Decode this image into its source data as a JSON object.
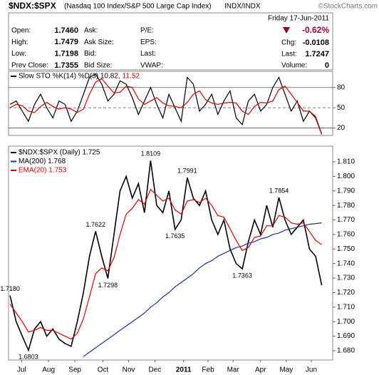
{
  "quote": {
    "title": "$NDX:$SPX",
    "subtitle": "(Nasdaq 100 Index/S&P 500 Large Cap Index)",
    "exchange": "INDX/INDX",
    "date": "Friday 17-Jun-2011",
    "change_pct": "-0.62%",
    "credit": "©StockCharts.com",
    "fields": [
      {
        "label": "Open:",
        "value": "1.7460"
      },
      {
        "label": "High:",
        "value": "1.7479"
      },
      {
        "label": "Low:",
        "value": "1.7198"
      },
      {
        "label": "Prev Close:",
        "value": "1.7355"
      }
    ],
    "fields_2": [
      "Ask:",
      "Ask Size:",
      "Bid:",
      "Bid Size:"
    ],
    "fields_3": [
      "P/E:",
      "EPS:",
      "Last:",
      "VWAP:"
    ],
    "right_fields": [
      {
        "label": "Chg:",
        "value": "-0.0108"
      },
      {
        "label": "Last:",
        "value": "1.7247"
      },
      {
        "label": "Volume:",
        "value": "0"
      }
    ]
  },
  "chart_data": [
    {
      "type": "line",
      "legend": [
        "Slow STO %K(14) %D(3) 10.82,",
        "11.52"
      ],
      "xlim": [
        -0.25,
        52.8
      ],
      "ylim": [
        9,
        104
      ],
      "yticks": [
        20,
        50,
        80
      ],
      "series": [
        {
          "name": "%K(14)",
          "color": "#000000",
          "values": [
            55,
            60,
            45,
            30,
            55,
            70,
            50,
            35,
            60,
            55,
            30,
            45,
            70,
            95,
            100,
            85,
            60,
            70,
            90,
            85,
            65,
            40,
            60,
            80,
            55,
            35,
            70,
            50,
            30,
            95,
            85,
            45,
            55,
            70,
            40,
            60,
            75,
            35,
            25,
            60,
            70,
            45,
            55,
            80,
            95,
            70,
            45,
            60,
            30,
            45,
            35,
            10.82
          ]
        },
        {
          "name": "%D(3)",
          "color": "#e00000",
          "values": [
            50,
            55,
            53,
            45,
            43,
            52,
            58,
            52,
            48,
            50,
            48,
            43,
            48,
            70,
            88,
            93,
            82,
            72,
            73,
            82,
            80,
            63,
            55,
            60,
            65,
            57,
            53,
            52,
            50,
            58,
            70,
            75,
            62,
            57,
            55,
            57,
            58,
            57,
            45,
            40,
            52,
            58,
            57,
            60,
            77,
            82,
            70,
            58,
            45,
            45,
            37,
            11.52
          ]
        }
      ]
    },
    {
      "type": "line",
      "xlim": [
        -0.25,
        52.8
      ],
      "ylim": [
        1.6736,
        1.8208
      ],
      "xticks": [
        {
          "value": 1.9,
          "label": "Jul"
        },
        {
          "value": 6.3,
          "label": "Aug"
        },
        {
          "value": 10.6,
          "label": "Sep"
        },
        {
          "value": 15.2,
          "label": "Oct"
        },
        {
          "value": 19.4,
          "label": "Nov"
        },
        {
          "value": 23.7,
          "label": "Dec"
        },
        {
          "value": 28.4,
          "label": "2011"
        },
        {
          "value": 32.4,
          "label": "Feb"
        },
        {
          "value": 36.5,
          "label": "Mar"
        },
        {
          "value": 41.0,
          "label": "Apr"
        },
        {
          "value": 45.2,
          "label": "May"
        },
        {
          "value": 49.3,
          "label": "Jun"
        }
      ],
      "yticks": [
        {
          "value": 1.68,
          "label": "1.680"
        },
        {
          "value": 1.69,
          "label": "1.690"
        },
        {
          "value": 1.7,
          "label": "1.700"
        },
        {
          "value": 1.71,
          "label": "1.710"
        },
        {
          "value": 1.72,
          "label": "1.720"
        },
        {
          "value": 1.73,
          "label": "1.730"
        },
        {
          "value": 1.74,
          "label": "1.740"
        },
        {
          "value": 1.75,
          "label": "1.750"
        },
        {
          "value": 1.76,
          "label": "1.760"
        },
        {
          "value": 1.77,
          "label": "1.770"
        },
        {
          "value": 1.78,
          "label": "1.780"
        },
        {
          "value": 1.79,
          "label": "1.790"
        },
        {
          "value": 1.8,
          "label": "1.800"
        },
        {
          "value": 1.81,
          "label": "1.810"
        }
      ],
      "series": [
        {
          "name": "$NDX:$SPX (Daily) 1.725",
          "color": "#000000",
          "values": [
            1.718,
            1.7,
            1.69,
            1.6803,
            1.695,
            1.7,
            1.69,
            1.695,
            1.688,
            1.685,
            1.683,
            1.7,
            1.72,
            1.745,
            1.7622,
            1.745,
            1.7298,
            1.76,
            1.79,
            1.8,
            1.785,
            1.795,
            1.775,
            1.8109,
            1.78,
            1.775,
            1.79,
            1.7635,
            1.77,
            1.7991,
            1.785,
            1.78,
            1.79,
            1.77,
            1.76,
            1.77,
            1.75,
            1.74,
            1.7363,
            1.755,
            1.77,
            1.76,
            1.78,
            1.765,
            1.7854,
            1.77,
            1.76,
            1.765,
            1.77,
            1.75,
            1.745,
            1.725
          ],
          "value_labels": [
            "1.7180",
            null,
            null,
            "1.6803",
            null,
            null,
            null,
            null,
            null,
            null,
            null,
            null,
            null,
            null,
            "1.7622",
            null,
            "1.7298",
            null,
            null,
            null,
            null,
            null,
            null,
            "1.8109",
            null,
            null,
            null,
            "1.7635",
            null,
            "1.7991",
            null,
            null,
            null,
            null,
            null,
            null,
            null,
            null,
            "1.7363",
            null,
            null,
            null,
            null,
            null,
            "1.7854",
            null,
            null,
            null,
            null,
            null,
            null,
            null
          ]
        },
        {
          "name": "MA(200) 1.768",
          "color": "#1f2fa8",
          "values": [
            null,
            null,
            null,
            null,
            null,
            null,
            null,
            null,
            null,
            null,
            null,
            null,
            1.676,
            1.679,
            1.682,
            1.685,
            1.688,
            1.691,
            1.694,
            1.697,
            1.7,
            1.703,
            1.706,
            1.71,
            1.713,
            1.717,
            1.72,
            1.724,
            1.727,
            1.73,
            1.733,
            1.737,
            1.74,
            1.742,
            1.745,
            1.747,
            1.749,
            1.751,
            1.752,
            1.754,
            1.755,
            1.757,
            1.758,
            1.76,
            1.761,
            1.763,
            1.764,
            1.765,
            1.766,
            1.767,
            1.7675,
            1.768
          ]
        },
        {
          "name": "EMA(20) 1.753",
          "color": "#e00000",
          "values": [
            1.712,
            1.706,
            1.7,
            1.693,
            1.694,
            1.696,
            1.694,
            1.694,
            1.692,
            1.69,
            1.688,
            1.692,
            1.702,
            1.717,
            1.733,
            1.737,
            1.735,
            1.744,
            1.76,
            1.774,
            1.778,
            1.784,
            1.781,
            1.791,
            1.787,
            1.783,
            1.785,
            1.777,
            1.774,
            1.783,
            1.784,
            1.782,
            1.785,
            1.78,
            1.773,
            1.772,
            1.764,
            1.756,
            1.749,
            1.751,
            1.758,
            1.759,
            1.766,
            1.766,
            1.773,
            1.772,
            1.768,
            1.767,
            1.768,
            1.762,
            1.756,
            1.753
          ]
        }
      ]
    }
  ]
}
